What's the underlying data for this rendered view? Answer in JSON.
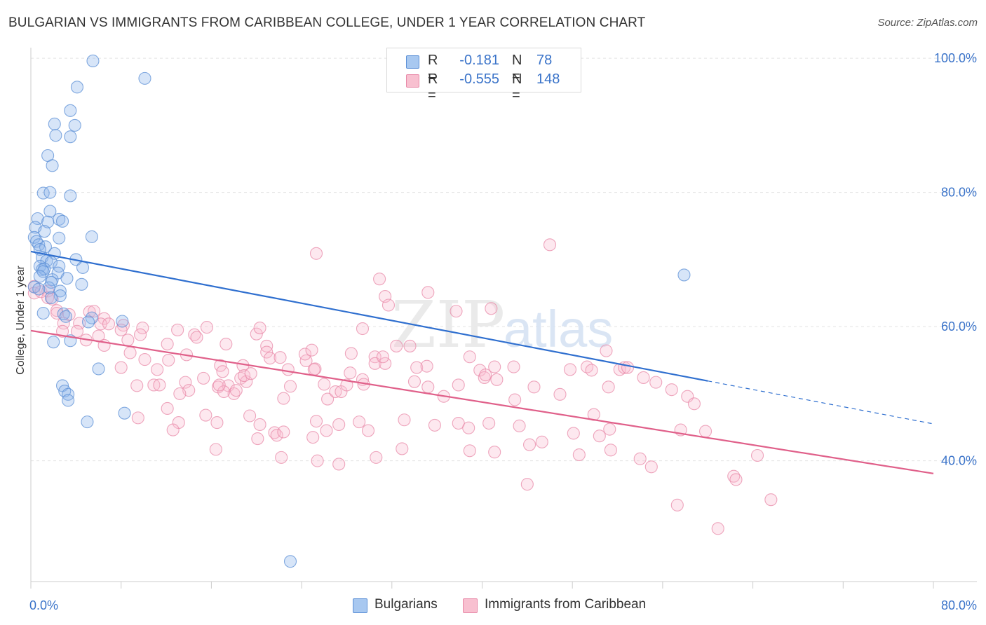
{
  "title": "BULGARIAN VS IMMIGRANTS FROM CARIBBEAN COLLEGE, UNDER 1 YEAR CORRELATION CHART",
  "source": "Source: ZipAtlas.com",
  "watermark": {
    "zip": "ZIP",
    "atlas": "atlas"
  },
  "legend": {
    "r_label": "R =",
    "n_label": "N =",
    "rows": [
      {
        "r": "-0.181",
        "n": "78",
        "color": "#a8c8f0",
        "stroke": "#5b8fd6"
      },
      {
        "r": "-0.555",
        "n": "148",
        "color": "#f8c0d0",
        "stroke": "#e889a8"
      }
    ]
  },
  "bottom_legend": [
    "Bulgarians",
    "Immigrants from Caribbean"
  ],
  "chart_data": {
    "type": "scatter",
    "xlabel": "",
    "ylabel": "College, Under 1 year",
    "xlim": [
      0,
      80
    ],
    "ylim": [
      22,
      102
    ],
    "x_tick_labels": [
      {
        "value": 0,
        "label": "0.0%"
      },
      {
        "value": 80,
        "label": "80.0%"
      }
    ],
    "y_tick_labels": [
      {
        "value": 100,
        "label": "100.0%"
      },
      {
        "value": 80,
        "label": "80.0%"
      },
      {
        "value": 60,
        "label": "60.0%"
      },
      {
        "value": 40,
        "label": "40.0%"
      }
    ],
    "grid": true,
    "series": [
      {
        "name": "Bulgarians",
        "color": "#5b8fd6",
        "fill": "rgba(140,180,235,0.35)",
        "trend": {
          "color": "#2f6fcf",
          "x0": 0,
          "y0": 71.2,
          "x1": 60,
          "y1": 51.9,
          "dash_to_x": 80,
          "dash_to_y": 45.5
        },
        "points": [
          [
            5.5,
            99.6
          ],
          [
            10.1,
            97
          ],
          [
            4.1,
            95.7
          ],
          [
            3.5,
            92.2
          ],
          [
            2.1,
            90.2
          ],
          [
            3.9,
            90
          ],
          [
            2.2,
            88.5
          ],
          [
            3.5,
            88.3
          ],
          [
            1.5,
            85.5
          ],
          [
            1.9,
            84
          ],
          [
            1.1,
            79.9
          ],
          [
            1.7,
            80
          ],
          [
            3.5,
            79.5
          ],
          [
            1.7,
            77.2
          ],
          [
            0.6,
            76.1
          ],
          [
            2.5,
            76
          ],
          [
            2.8,
            75.7
          ],
          [
            1.5,
            75.6
          ],
          [
            0.4,
            74.8
          ],
          [
            1.2,
            74.2
          ],
          [
            0.3,
            73.3
          ],
          [
            2.5,
            73.2
          ],
          [
            5.4,
            73.4
          ],
          [
            0.5,
            72.7
          ],
          [
            0.7,
            72.2
          ],
          [
            1.3,
            71.9
          ],
          [
            0.8,
            71.5
          ],
          [
            2.1,
            70.9
          ],
          [
            1.0,
            70.3
          ],
          [
            4.0,
            70
          ],
          [
            1.4,
            69.8
          ],
          [
            1.8,
            69.6
          ],
          [
            0.8,
            69
          ],
          [
            2.5,
            69
          ],
          [
            1.0,
            68.5
          ],
          [
            4.6,
            68.8
          ],
          [
            1.2,
            68.6
          ],
          [
            1.1,
            68.2
          ],
          [
            2.4,
            68
          ],
          [
            0.8,
            67.5
          ],
          [
            3.2,
            67.2
          ],
          [
            1.9,
            67
          ],
          [
            1.8,
            66.6
          ],
          [
            4.5,
            66.3
          ],
          [
            0.3,
            65.9
          ],
          [
            1.6,
            65.8
          ],
          [
            0.7,
            65.6
          ],
          [
            2.6,
            65.3
          ],
          [
            2.6,
            64.6
          ],
          [
            1.8,
            64.3
          ],
          [
            1.1,
            62
          ],
          [
            2.9,
            61.9
          ],
          [
            3.1,
            61.5
          ],
          [
            5.4,
            61.3
          ],
          [
            8.1,
            60.8
          ],
          [
            5.1,
            60.7
          ],
          [
            2.0,
            57.7
          ],
          [
            3.5,
            57.9
          ],
          [
            6.0,
            53.7
          ],
          [
            2.8,
            51.2
          ],
          [
            3.0,
            50.4
          ],
          [
            3.3,
            49.9
          ],
          [
            3.3,
            49
          ],
          [
            8.3,
            47.1
          ],
          [
            5.0,
            45.8
          ],
          [
            57.9,
            67.7
          ],
          [
            23.0,
            25
          ]
        ]
      },
      {
        "name": "Immigrants from Caribbean",
        "color": "#e889a8",
        "fill": "rgba(248,190,210,0.35)",
        "trend": {
          "color": "#e0608a",
          "x0": 0,
          "y0": 59.4,
          "x1": 80,
          "y1": 38.1
        },
        "points": [
          [
            0.3,
            66
          ],
          [
            0.3,
            65
          ],
          [
            0.9,
            65.2
          ],
          [
            1.5,
            65.3
          ],
          [
            1.5,
            64.3
          ],
          [
            1.9,
            64.1
          ],
          [
            2.3,
            62.4
          ],
          [
            2.3,
            62
          ],
          [
            3.4,
            61.8
          ],
          [
            2.9,
            60.5
          ],
          [
            4.3,
            60.5
          ],
          [
            4.1,
            59.3
          ],
          [
            2.8,
            59.3
          ],
          [
            5.2,
            62.2
          ],
          [
            5.6,
            62.3
          ],
          [
            6.5,
            61.2
          ],
          [
            6.2,
            60.4
          ],
          [
            6.9,
            60.4
          ],
          [
            8.2,
            60.2
          ],
          [
            8.0,
            59.5
          ],
          [
            9.9,
            59.8
          ],
          [
            9.7,
            58.8
          ],
          [
            6.0,
            58.6
          ],
          [
            6.5,
            57.2
          ],
          [
            4.9,
            58
          ],
          [
            8.6,
            58
          ],
          [
            8.8,
            56.1
          ],
          [
            10.1,
            55.1
          ],
          [
            12.1,
            57.4
          ],
          [
            12.2,
            55
          ],
          [
            11.2,
            53.6
          ],
          [
            8.0,
            53.9
          ],
          [
            10.9,
            51.3
          ],
          [
            11.4,
            51.3
          ],
          [
            9.4,
            51.2
          ],
          [
            13.7,
            51.7
          ],
          [
            14.0,
            50.5
          ],
          [
            13.2,
            50
          ],
          [
            13.8,
            55.8
          ],
          [
            14.5,
            58.8
          ],
          [
            15.6,
            59.9
          ],
          [
            14.7,
            58.4
          ],
          [
            17.3,
            57.4
          ],
          [
            16.8,
            54.2
          ],
          [
            16.6,
            51
          ],
          [
            15.3,
            52.3
          ],
          [
            17.0,
            53.3
          ],
          [
            18.8,
            54.2
          ],
          [
            18.6,
            52.3
          ],
          [
            17.5,
            51.2
          ],
          [
            18.0,
            50
          ],
          [
            19.1,
            51.8
          ],
          [
            18.9,
            52.7
          ],
          [
            17.1,
            50.3
          ],
          [
            18.2,
            50.5
          ],
          [
            19.5,
            53
          ],
          [
            20.0,
            58.9
          ],
          [
            20.3,
            59.8
          ],
          [
            20.9,
            57.1
          ],
          [
            20.9,
            56.2
          ],
          [
            21.2,
            55.3
          ],
          [
            22.1,
            55.4
          ],
          [
            22.8,
            53.6
          ],
          [
            23.0,
            51.1
          ],
          [
            22.4,
            49.3
          ],
          [
            24.4,
            54.9
          ],
          [
            24.3,
            55.9
          ],
          [
            24.9,
            56.5
          ],
          [
            25.2,
            53.7
          ],
          [
            25.1,
            53.6
          ],
          [
            26.0,
            51.4
          ],
          [
            26.3,
            49.2
          ],
          [
            27.0,
            50.3
          ],
          [
            27.5,
            50.3
          ],
          [
            28.0,
            51.3
          ],
          [
            28.4,
            56
          ],
          [
            28.3,
            53.1
          ],
          [
            29.4,
            52.1
          ],
          [
            29.4,
            59.7
          ],
          [
            30.5,
            55.5
          ],
          [
            30.5,
            54.5
          ],
          [
            31.4,
            54.5
          ],
          [
            31.2,
            55.5
          ],
          [
            32.4,
            57.1
          ],
          [
            33.6,
            57.1
          ],
          [
            34.2,
            53.9
          ],
          [
            34.0,
            51.8
          ],
          [
            35.1,
            54.1
          ],
          [
            35.2,
            51
          ],
          [
            36.6,
            49.6
          ],
          [
            37.9,
            51.3
          ],
          [
            38.9,
            55.5
          ],
          [
            39.8,
            53.5
          ],
          [
            40.2,
            52.4
          ],
          [
            40.3,
            52.8
          ],
          [
            41.1,
            54
          ],
          [
            41.3,
            52.1
          ],
          [
            42.8,
            54
          ],
          [
            42.9,
            49.1
          ],
          [
            44.6,
            51
          ],
          [
            46.9,
            49.9
          ],
          [
            47.8,
            53.6
          ],
          [
            49.3,
            54
          ],
          [
            49.7,
            53.5
          ],
          [
            51.2,
            51
          ],
          [
            51.0,
            56.4
          ],
          [
            52.2,
            53.6
          ],
          [
            52.6,
            53.9
          ],
          [
            52.9,
            53.9
          ],
          [
            54.3,
            52.4
          ],
          [
            55.4,
            51.7
          ],
          [
            56.8,
            50.6
          ],
          [
            58.2,
            49.6
          ],
          [
            58.8,
            48.5
          ],
          [
            9.5,
            46.4
          ],
          [
            12.1,
            47.8
          ],
          [
            13.1,
            45.7
          ],
          [
            12.6,
            44.6
          ],
          [
            15.5,
            46.8
          ],
          [
            16.5,
            45.7
          ],
          [
            19.4,
            46.7
          ],
          [
            20.1,
            43.3
          ],
          [
            20.3,
            45.4
          ],
          [
            21.6,
            44.2
          ],
          [
            21.8,
            43.8
          ],
          [
            22.4,
            44.3
          ],
          [
            25.0,
            43.5
          ],
          [
            25.3,
            45.9
          ],
          [
            26.2,
            44.5
          ],
          [
            27.3,
            45.4
          ],
          [
            29.1,
            45.8
          ],
          [
            29.9,
            44.5
          ],
          [
            33.1,
            46.1
          ],
          [
            35.8,
            45.3
          ],
          [
            37.9,
            45.6
          ],
          [
            38.8,
            44.9
          ],
          [
            40.6,
            45.6
          ],
          [
            41.1,
            41.3
          ],
          [
            43.3,
            45.2
          ],
          [
            44.2,
            42.4
          ],
          [
            45.3,
            42.8
          ],
          [
            48.1,
            44.1
          ],
          [
            49.9,
            46.9
          ],
          [
            50.4,
            43.7
          ],
          [
            51.3,
            44.7
          ],
          [
            54.0,
            40.3
          ],
          [
            57.6,
            44.6
          ],
          [
            59.8,
            44.4
          ],
          [
            16.4,
            41.7
          ],
          [
            22.2,
            40.5
          ],
          [
            25.4,
            40
          ],
          [
            27.3,
            39.5
          ],
          [
            30.6,
            40.5
          ],
          [
            32.9,
            41.8
          ],
          [
            38.9,
            41.5
          ],
          [
            44.0,
            36.5
          ],
          [
            48.6,
            40.9
          ],
          [
            51.4,
            41.6
          ],
          [
            55.0,
            39.1
          ],
          [
            57.3,
            33.4
          ],
          [
            60.9,
            29.9
          ],
          [
            62.3,
            37.7
          ],
          [
            62.5,
            37.2
          ],
          [
            64.4,
            40.8
          ],
          [
            65.6,
            34.2
          ],
          [
            16.7,
            51.3
          ],
          [
            31.4,
            64.5
          ],
          [
            31.7,
            63.2
          ],
          [
            13.0,
            59.5
          ],
          [
            29.5,
            51.4
          ],
          [
            46.0,
            72.2
          ],
          [
            25.3,
            70.9
          ],
          [
            30.9,
            67.1
          ],
          [
            35.2,
            65.1
          ],
          [
            37.7,
            62.3
          ],
          [
            40.8,
            62.7
          ]
        ]
      }
    ]
  }
}
